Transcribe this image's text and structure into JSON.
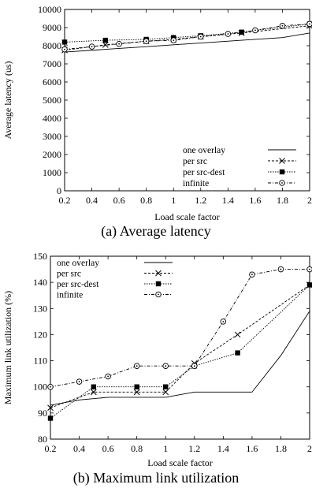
{
  "figure": {
    "caption_a": "(a) Average latency",
    "caption_b": "(b) Maximum link utilization"
  },
  "chart_data": [
    {
      "type": "line",
      "xlabel": "Load scale factor",
      "ylabel": "Average latency (us)",
      "xlim": [
        0.2,
        2
      ],
      "ylim": [
        0,
        10000
      ],
      "xticks": [
        "0.2",
        "0.4",
        "0.6",
        "0.8",
        "1",
        "1.2",
        "1.4",
        "1.6",
        "1.8",
        "2"
      ],
      "yticks": [
        "0",
        "1000",
        "2000",
        "3000",
        "4000",
        "5000",
        "6000",
        "7000",
        "8000",
        "9000",
        "10000"
      ],
      "legend_position": "bottom-right",
      "series": [
        {
          "name": "one overlay",
          "marker": "none",
          "dash": "solid",
          "x": [
            0.2,
            0.5,
            0.8,
            1.0,
            1.2,
            1.5,
            1.8,
            2.0
          ],
          "y": [
            7650,
            7800,
            7950,
            8050,
            8150,
            8300,
            8450,
            8700
          ]
        },
        {
          "name": "per src",
          "marker": "x",
          "dash": "3,2",
          "x": [
            0.2,
            0.5,
            0.8,
            1.0,
            1.2,
            1.5,
            2.0
          ],
          "y": [
            7750,
            8050,
            8250,
            8350,
            8500,
            8700,
            9100
          ]
        },
        {
          "name": "per src-dest",
          "marker": "square",
          "dash": "1.5,1.5",
          "x": [
            0.2,
            0.5,
            0.8,
            1.0,
            1.2,
            1.5,
            2.0
          ],
          "y": [
            8200,
            8300,
            8350,
            8450,
            8550,
            8750,
            9200
          ]
        },
        {
          "name": "infinite",
          "marker": "circle",
          "dash": "4,2,1,2",
          "x": [
            0.2,
            0.4,
            0.6,
            0.8,
            1.0,
            1.2,
            1.4,
            1.6,
            1.8,
            2.0
          ],
          "y": [
            7800,
            7950,
            8100,
            8250,
            8300,
            8500,
            8650,
            8850,
            9100,
            9200
          ]
        }
      ]
    },
    {
      "type": "line",
      "xlabel": "Load scale factor",
      "ylabel": "Maximum link utilization (%)",
      "xlim": [
        0.2,
        2
      ],
      "ylim": [
        80,
        150
      ],
      "xticks": [
        "0.2",
        "0.4",
        "0.6",
        "0.8",
        "1",
        "1.2",
        "1.4",
        "1.6",
        "1.8",
        "2"
      ],
      "yticks": [
        "80",
        "90",
        "100",
        "110",
        "120",
        "130",
        "140",
        "150"
      ],
      "legend_position": "top-left",
      "series": [
        {
          "name": "one overlay",
          "marker": "none",
          "dash": "solid",
          "x": [
            0.2,
            0.4,
            0.6,
            1.0,
            1.2,
            1.4,
            1.6,
            1.8,
            2.0
          ],
          "y": [
            93,
            95,
            96,
            96,
            98,
            98,
            98,
            112,
            129
          ]
        },
        {
          "name": "per src",
          "marker": "x",
          "dash": "3,2",
          "x": [
            0.2,
            0.5,
            0.8,
            1.0,
            1.2,
            1.5,
            2.0
          ],
          "y": [
            92,
            98,
            98,
            98,
            109,
            120,
            139
          ]
        },
        {
          "name": "per src-dest",
          "marker": "square",
          "dash": "1.5,1.5",
          "x": [
            0.2,
            0.5,
            0.8,
            1.0,
            1.2,
            1.5,
            2.0
          ],
          "y": [
            88,
            100,
            100,
            100,
            108,
            113,
            139
          ]
        },
        {
          "name": "infinite",
          "marker": "circle",
          "dash": "4,2,1,2",
          "x": [
            0.2,
            0.4,
            0.6,
            0.8,
            1.0,
            1.2,
            1.4,
            1.6,
            1.8,
            2.0
          ],
          "y": [
            100,
            102,
            104,
            108,
            108,
            108,
            125,
            143,
            145,
            145
          ]
        }
      ]
    }
  ]
}
